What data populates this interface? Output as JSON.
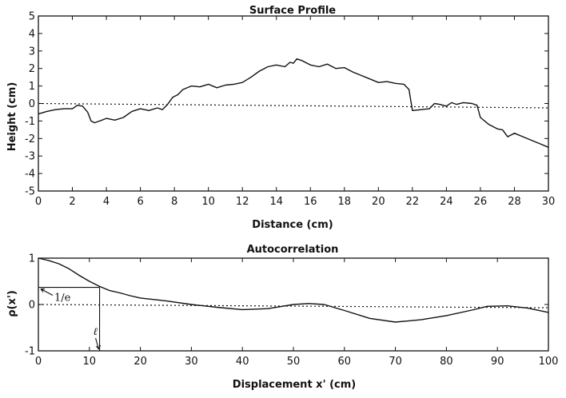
{
  "chart_data": [
    {
      "type": "line",
      "title": "Surface Profile",
      "xlabel": "Distance (cm)",
      "ylabel": "Height (cm)",
      "xlim": [
        0,
        30
      ],
      "ylim": [
        -5,
        5
      ],
      "x_ticks": [
        0,
        2,
        4,
        6,
        8,
        10,
        12,
        14,
        16,
        18,
        20,
        22,
        24,
        26,
        28,
        30
      ],
      "y_ticks": [
        -5,
        -4,
        -3,
        -2,
        -1,
        0,
        1,
        2,
        3,
        4,
        5
      ],
      "reference_line": {
        "style": "dotted",
        "from": [
          0,
          0
        ],
        "to": [
          30,
          -0.25
        ]
      },
      "series": [
        {
          "x": [
            0,
            0.5,
            1.0,
            1.5,
            2.0,
            2.3,
            2.6,
            2.9,
            3.1,
            3.3,
            3.6,
            4.0,
            4.5,
            5.0,
            5.5,
            6.0,
            6.5,
            7.0,
            7.3,
            7.6,
            7.9,
            8.2,
            8.5,
            9.0,
            9.5,
            10.0,
            10.5,
            11.0,
            11.5,
            12.0,
            12.5,
            13.0,
            13.5,
            14.0,
            14.5,
            14.8,
            15.0,
            15.2,
            15.5,
            16.0,
            16.5,
            17.0,
            17.5,
            18.0,
            18.5,
            19.0,
            19.5,
            20.0,
            20.5,
            21.0,
            21.5,
            21.8,
            22.0,
            22.5,
            23.0,
            23.3,
            23.6,
            24.0,
            24.3,
            24.6,
            25.0,
            25.5,
            25.8,
            26.0,
            26.5,
            27.0,
            27.3,
            27.6,
            28.0,
            28.5,
            29.0,
            29.5,
            30.0
          ],
          "y": [
            -0.6,
            -0.45,
            -0.35,
            -0.3,
            -0.3,
            -0.1,
            -0.15,
            -0.5,
            -1.0,
            -1.1,
            -1.0,
            -0.85,
            -0.95,
            -0.8,
            -0.45,
            -0.3,
            -0.4,
            -0.25,
            -0.35,
            -0.05,
            0.35,
            0.5,
            0.8,
            1.0,
            0.95,
            1.1,
            0.9,
            1.05,
            1.1,
            1.2,
            1.5,
            1.85,
            2.1,
            2.2,
            2.1,
            2.35,
            2.3,
            2.55,
            2.45,
            2.2,
            2.1,
            2.25,
            2.0,
            2.05,
            1.8,
            1.6,
            1.4,
            1.2,
            1.25,
            1.15,
            1.1,
            0.8,
            -0.4,
            -0.35,
            -0.3,
            0.0,
            -0.05,
            -0.15,
            0.05,
            -0.05,
            0.05,
            0.0,
            -0.1,
            -0.8,
            -1.2,
            -1.45,
            -1.5,
            -1.9,
            -1.7,
            -1.9,
            -2.1,
            -2.3,
            -2.5
          ]
        }
      ]
    },
    {
      "type": "line",
      "title": "Autocorrelation",
      "xlabel": "Displacement x' (cm)",
      "ylabel": "ρ(x')",
      "xlim": [
        0,
        100
      ],
      "ylim": [
        -1,
        1
      ],
      "x_ticks": [
        0,
        10,
        20,
        30,
        40,
        50,
        60,
        70,
        80,
        90,
        100
      ],
      "y_ticks": [
        -1,
        0,
        1
      ],
      "reference_line": {
        "style": "dotted",
        "from": [
          0,
          0
        ],
        "to": [
          100,
          -0.07
        ]
      },
      "series": [
        {
          "x": [
            0,
            2,
            4,
            6,
            8,
            10,
            12,
            14,
            16,
            18,
            20,
            25,
            30,
            35,
            40,
            45,
            50,
            53,
            56,
            60,
            65,
            70,
            75,
            80,
            85,
            88,
            92,
            96,
            100
          ],
          "y": [
            1.0,
            0.95,
            0.88,
            0.77,
            0.63,
            0.5,
            0.39,
            0.3,
            0.25,
            0.19,
            0.14,
            0.08,
            0.0,
            -0.06,
            -0.11,
            -0.09,
            0.0,
            0.02,
            0.0,
            -0.13,
            -0.3,
            -0.38,
            -0.33,
            -0.24,
            -0.12,
            -0.04,
            -0.03,
            -0.08,
            -0.17
          ]
        }
      ],
      "annotations": [
        {
          "text": "1/e",
          "x": 0,
          "y": 0.37
        },
        {
          "text": "ℓ",
          "x": 12,
          "y": -1
        }
      ],
      "correlation_length": 12,
      "one_over_e_level": 0.37
    }
  ]
}
